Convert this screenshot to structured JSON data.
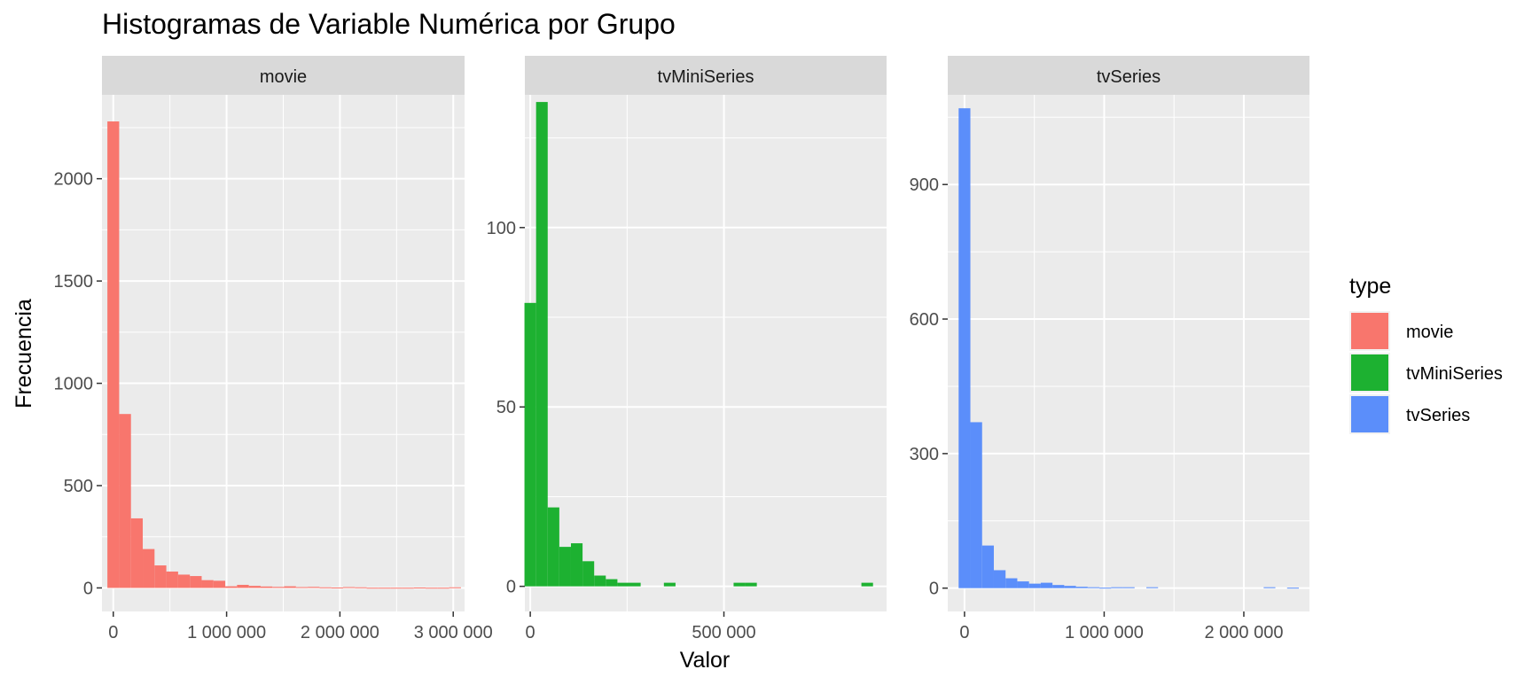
{
  "chart_data": {
    "type": "bar",
    "title": "Histogramas de Variable Numérica por Grupo",
    "xlabel": "Valor",
    "ylabel": "Frecuencia",
    "grid": true,
    "legend": {
      "title": "type",
      "position": "right",
      "entries": [
        "movie",
        "tvMiniSeries",
        "tvSeries"
      ]
    },
    "panels": [
      {
        "name": "movie",
        "color": "#F8766D",
        "xlim": [
          -100000,
          3100000
        ],
        "ylim": [
          -115,
          2410
        ],
        "x_ticks": [
          {
            "value": 0,
            "label": "0"
          },
          {
            "value": 1000000,
            "label": "1 000 000"
          },
          {
            "value": 2000000,
            "label": "2 000 000"
          },
          {
            "value": 3000000,
            "label": "3 000 000"
          }
        ],
        "y_ticks": [
          {
            "value": 0,
            "label": "0"
          },
          {
            "value": 500,
            "label": "500"
          },
          {
            "value": 1000,
            "label": "1000"
          },
          {
            "value": 1500,
            "label": "1500"
          },
          {
            "value": 2000,
            "label": "2000"
          }
        ],
        "bins": [
          {
            "x0": -52000,
            "x1": 52000,
            "count": 2280
          },
          {
            "x0": 52000,
            "x1": 156000,
            "count": 850
          },
          {
            "x0": 156000,
            "x1": 260000,
            "count": 340
          },
          {
            "x0": 260000,
            "x1": 364000,
            "count": 190
          },
          {
            "x0": 364000,
            "x1": 468000,
            "count": 110
          },
          {
            "x0": 468000,
            "x1": 572000,
            "count": 80
          },
          {
            "x0": 572000,
            "x1": 676000,
            "count": 65
          },
          {
            "x0": 676000,
            "x1": 780000,
            "count": 58
          },
          {
            "x0": 780000,
            "x1": 884000,
            "count": 38
          },
          {
            "x0": 884000,
            "x1": 988000,
            "count": 35
          },
          {
            "x0": 988000,
            "x1": 1092000,
            "count": 8
          },
          {
            "x0": 1092000,
            "x1": 1196000,
            "count": 15
          },
          {
            "x0": 1196000,
            "x1": 1300000,
            "count": 10
          },
          {
            "x0": 1300000,
            "x1": 1404000,
            "count": 7
          },
          {
            "x0": 1404000,
            "x1": 1508000,
            "count": 5
          },
          {
            "x0": 1508000,
            "x1": 1612000,
            "count": 8
          },
          {
            "x0": 1612000,
            "x1": 1716000,
            "count": 4
          },
          {
            "x0": 1716000,
            "x1": 1820000,
            "count": 5
          },
          {
            "x0": 1820000,
            "x1": 1924000,
            "count": 3
          },
          {
            "x0": 1924000,
            "x1": 2028000,
            "count": 2
          },
          {
            "x0": 2028000,
            "x1": 2132000,
            "count": 4
          },
          {
            "x0": 2132000,
            "x1": 2236000,
            "count": 3
          },
          {
            "x0": 2236000,
            "x1": 2340000,
            "count": 1
          },
          {
            "x0": 2340000,
            "x1": 2444000,
            "count": 1
          },
          {
            "x0": 2444000,
            "x1": 2548000,
            "count": 1
          },
          {
            "x0": 2548000,
            "x1": 2652000,
            "count": 1
          },
          {
            "x0": 2652000,
            "x1": 2756000,
            "count": 2
          },
          {
            "x0": 2756000,
            "x1": 2860000,
            "count": 1
          },
          {
            "x0": 2860000,
            "x1": 2964000,
            "count": 1
          },
          {
            "x0": 2964000,
            "x1": 3068000,
            "count": 3
          }
        ]
      },
      {
        "name": "tvMiniSeries",
        "color": "#1DB131",
        "xlim": [
          -14000,
          920000
        ],
        "ylim": [
          -7,
          137
        ],
        "x_ticks": [
          {
            "value": 0,
            "label": "0"
          },
          {
            "value": 500000,
            "label": "500 000"
          }
        ],
        "y_ticks": [
          {
            "value": 0,
            "label": "0"
          },
          {
            "value": 50,
            "label": "50"
          },
          {
            "value": 100,
            "label": "100"
          }
        ],
        "bins": [
          {
            "x0": -15000,
            "x1": 15000,
            "count": 79
          },
          {
            "x0": 15000,
            "x1": 45000,
            "count": 135
          },
          {
            "x0": 45000,
            "x1": 75000,
            "count": 22
          },
          {
            "x0": 75000,
            "x1": 105000,
            "count": 11
          },
          {
            "x0": 105000,
            "x1": 135000,
            "count": 12
          },
          {
            "x0": 135000,
            "x1": 165000,
            "count": 7
          },
          {
            "x0": 165000,
            "x1": 195000,
            "count": 3
          },
          {
            "x0": 195000,
            "x1": 225000,
            "count": 2
          },
          {
            "x0": 225000,
            "x1": 255000,
            "count": 1
          },
          {
            "x0": 255000,
            "x1": 285000,
            "count": 1
          },
          {
            "x0": 285000,
            "x1": 315000,
            "count": 0
          },
          {
            "x0": 315000,
            "x1": 345000,
            "count": 0
          },
          {
            "x0": 345000,
            "x1": 375000,
            "count": 1
          },
          {
            "x0": 375000,
            "x1": 405000,
            "count": 0
          },
          {
            "x0": 405000,
            "x1": 435000,
            "count": 0
          },
          {
            "x0": 435000,
            "x1": 465000,
            "count": 0
          },
          {
            "x0": 465000,
            "x1": 495000,
            "count": 0
          },
          {
            "x0": 495000,
            "x1": 525000,
            "count": 0
          },
          {
            "x0": 525000,
            "x1": 555000,
            "count": 1
          },
          {
            "x0": 555000,
            "x1": 585000,
            "count": 1
          },
          {
            "x0": 585000,
            "x1": 615000,
            "count": 0
          },
          {
            "x0": 615000,
            "x1": 645000,
            "count": 0
          },
          {
            "x0": 645000,
            "x1": 675000,
            "count": 0
          },
          {
            "x0": 675000,
            "x1": 705000,
            "count": 0
          },
          {
            "x0": 705000,
            "x1": 735000,
            "count": 0
          },
          {
            "x0": 735000,
            "x1": 765000,
            "count": 0
          },
          {
            "x0": 765000,
            "x1": 795000,
            "count": 0
          },
          {
            "x0": 795000,
            "x1": 825000,
            "count": 0
          },
          {
            "x0": 825000,
            "x1": 855000,
            "count": 0
          },
          {
            "x0": 855000,
            "x1": 885000,
            "count": 1
          }
        ]
      },
      {
        "name": "tvSeries",
        "color": "#5B8EFA",
        "xlim": [
          -120000,
          2470000
        ],
        "ylim": [
          -52,
          1100
        ],
        "x_ticks": [
          {
            "value": 0,
            "label": "0"
          },
          {
            "value": 1000000,
            "label": "1 000 000"
          },
          {
            "value": 2000000,
            "label": "2 000 000"
          }
        ],
        "y_ticks": [
          {
            "value": 0,
            "label": "0"
          },
          {
            "value": 300,
            "label": "300"
          },
          {
            "value": 600,
            "label": "600"
          },
          {
            "value": 900,
            "label": "900"
          }
        ],
        "bins": [
          {
            "x0": -42000,
            "x1": 42000,
            "count": 1070
          },
          {
            "x0": 42000,
            "x1": 126000,
            "count": 370
          },
          {
            "x0": 126000,
            "x1": 210000,
            "count": 95
          },
          {
            "x0": 210000,
            "x1": 294000,
            "count": 40
          },
          {
            "x0": 294000,
            "x1": 378000,
            "count": 22
          },
          {
            "x0": 378000,
            "x1": 462000,
            "count": 15
          },
          {
            "x0": 462000,
            "x1": 546000,
            "count": 10
          },
          {
            "x0": 546000,
            "x1": 630000,
            "count": 12
          },
          {
            "x0": 630000,
            "x1": 714000,
            "count": 7
          },
          {
            "x0": 714000,
            "x1": 798000,
            "count": 5
          },
          {
            "x0": 798000,
            "x1": 882000,
            "count": 3
          },
          {
            "x0": 882000,
            "x1": 966000,
            "count": 2
          },
          {
            "x0": 966000,
            "x1": 1050000,
            "count": 1
          },
          {
            "x0": 1050000,
            "x1": 1134000,
            "count": 2
          },
          {
            "x0": 1134000,
            "x1": 1218000,
            "count": 2
          },
          {
            "x0": 1218000,
            "x1": 1302000,
            "count": 0
          },
          {
            "x0": 1302000,
            "x1": 1386000,
            "count": 2
          },
          {
            "x0": 1386000,
            "x1": 1470000,
            "count": 0
          },
          {
            "x0": 1470000,
            "x1": 1554000,
            "count": 0
          },
          {
            "x0": 1554000,
            "x1": 1638000,
            "count": 0
          },
          {
            "x0": 1638000,
            "x1": 1722000,
            "count": 0
          },
          {
            "x0": 1722000,
            "x1": 1806000,
            "count": 0
          },
          {
            "x0": 1806000,
            "x1": 1890000,
            "count": 0
          },
          {
            "x0": 1890000,
            "x1": 1974000,
            "count": 0
          },
          {
            "x0": 1974000,
            "x1": 2058000,
            "count": 0
          },
          {
            "x0": 2058000,
            "x1": 2142000,
            "count": 0
          },
          {
            "x0": 2142000,
            "x1": 2226000,
            "count": 2
          },
          {
            "x0": 2226000,
            "x1": 2310000,
            "count": 0
          },
          {
            "x0": 2310000,
            "x1": 2394000,
            "count": 1
          }
        ]
      }
    ]
  }
}
